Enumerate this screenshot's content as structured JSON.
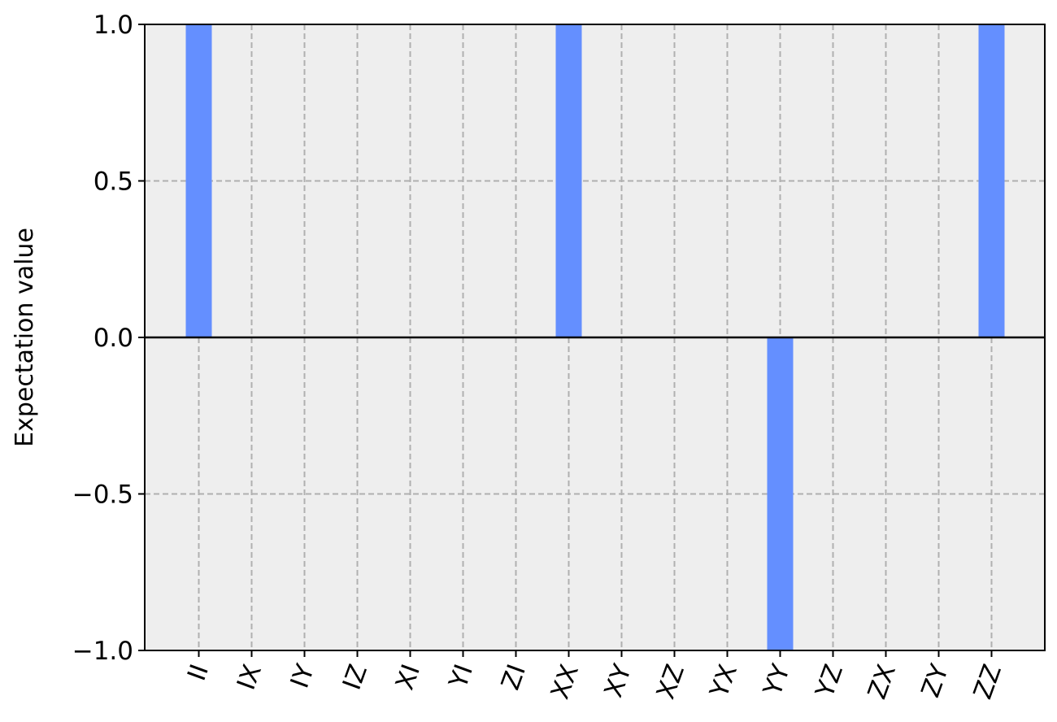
{
  "chart_data": {
    "type": "bar",
    "ylabel": "Expectation value",
    "xlabel": "",
    "ylim": [
      -1.0,
      1.0
    ],
    "yticks": [
      1.0,
      0.5,
      0.0,
      -0.5,
      -1.0
    ],
    "ytick_labels": [
      "1.0",
      "0.5",
      "0.0",
      "−0.5",
      "−1.0"
    ],
    "categories": [
      "II",
      "IX",
      "IY",
      "IZ",
      "XI",
      "YI",
      "ZI",
      "XX",
      "XY",
      "XZ",
      "YX",
      "YY",
      "YZ",
      "ZX",
      "ZY",
      "ZZ"
    ],
    "values": [
      1,
      0,
      0,
      0,
      0,
      0,
      0,
      1,
      0,
      0,
      0,
      -1,
      0,
      0,
      0,
      1
    ],
    "grid": true,
    "legend": "none",
    "colors": {
      "bar": "#648fff",
      "plot_background": "#eeeeee",
      "grid": "#b0b0b0",
      "axis": "#000000"
    }
  }
}
